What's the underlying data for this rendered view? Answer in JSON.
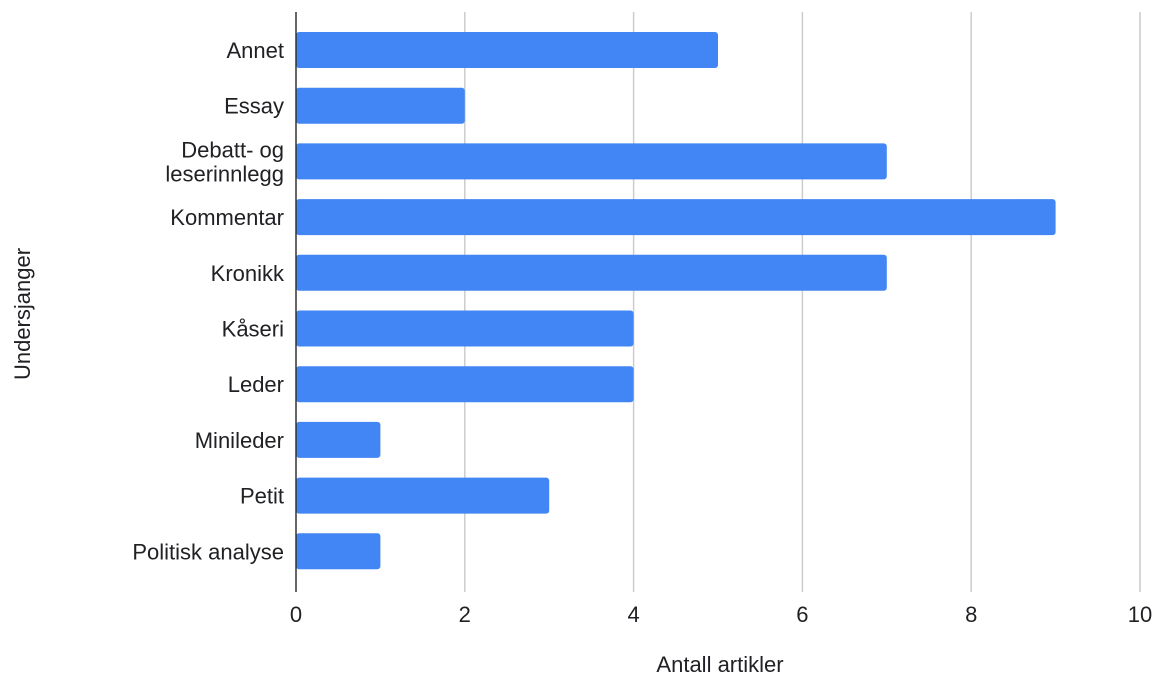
{
  "chart_data": {
    "type": "bar",
    "orientation": "horizontal",
    "title": "",
    "xlabel": "Antall artikler",
    "ylabel": "Undersjanger",
    "xlim": [
      0,
      10
    ],
    "xticks": [
      0,
      2,
      4,
      6,
      8,
      10
    ],
    "grid": true,
    "legend": "none",
    "bar_color": "#4285F4",
    "categories": [
      [
        "Annet"
      ],
      [
        "Essay"
      ],
      [
        "Debatt- og",
        "leserinnlegg"
      ],
      [
        "Kommentar"
      ],
      [
        "Kronikk"
      ],
      [
        "Kåseri"
      ],
      [
        "Leder"
      ],
      [
        "Minileder"
      ],
      [
        "Petit"
      ],
      [
        "Politisk analyse"
      ]
    ],
    "values": [
      5,
      2,
      7,
      9,
      7,
      4,
      4,
      1,
      3,
      1
    ]
  }
}
